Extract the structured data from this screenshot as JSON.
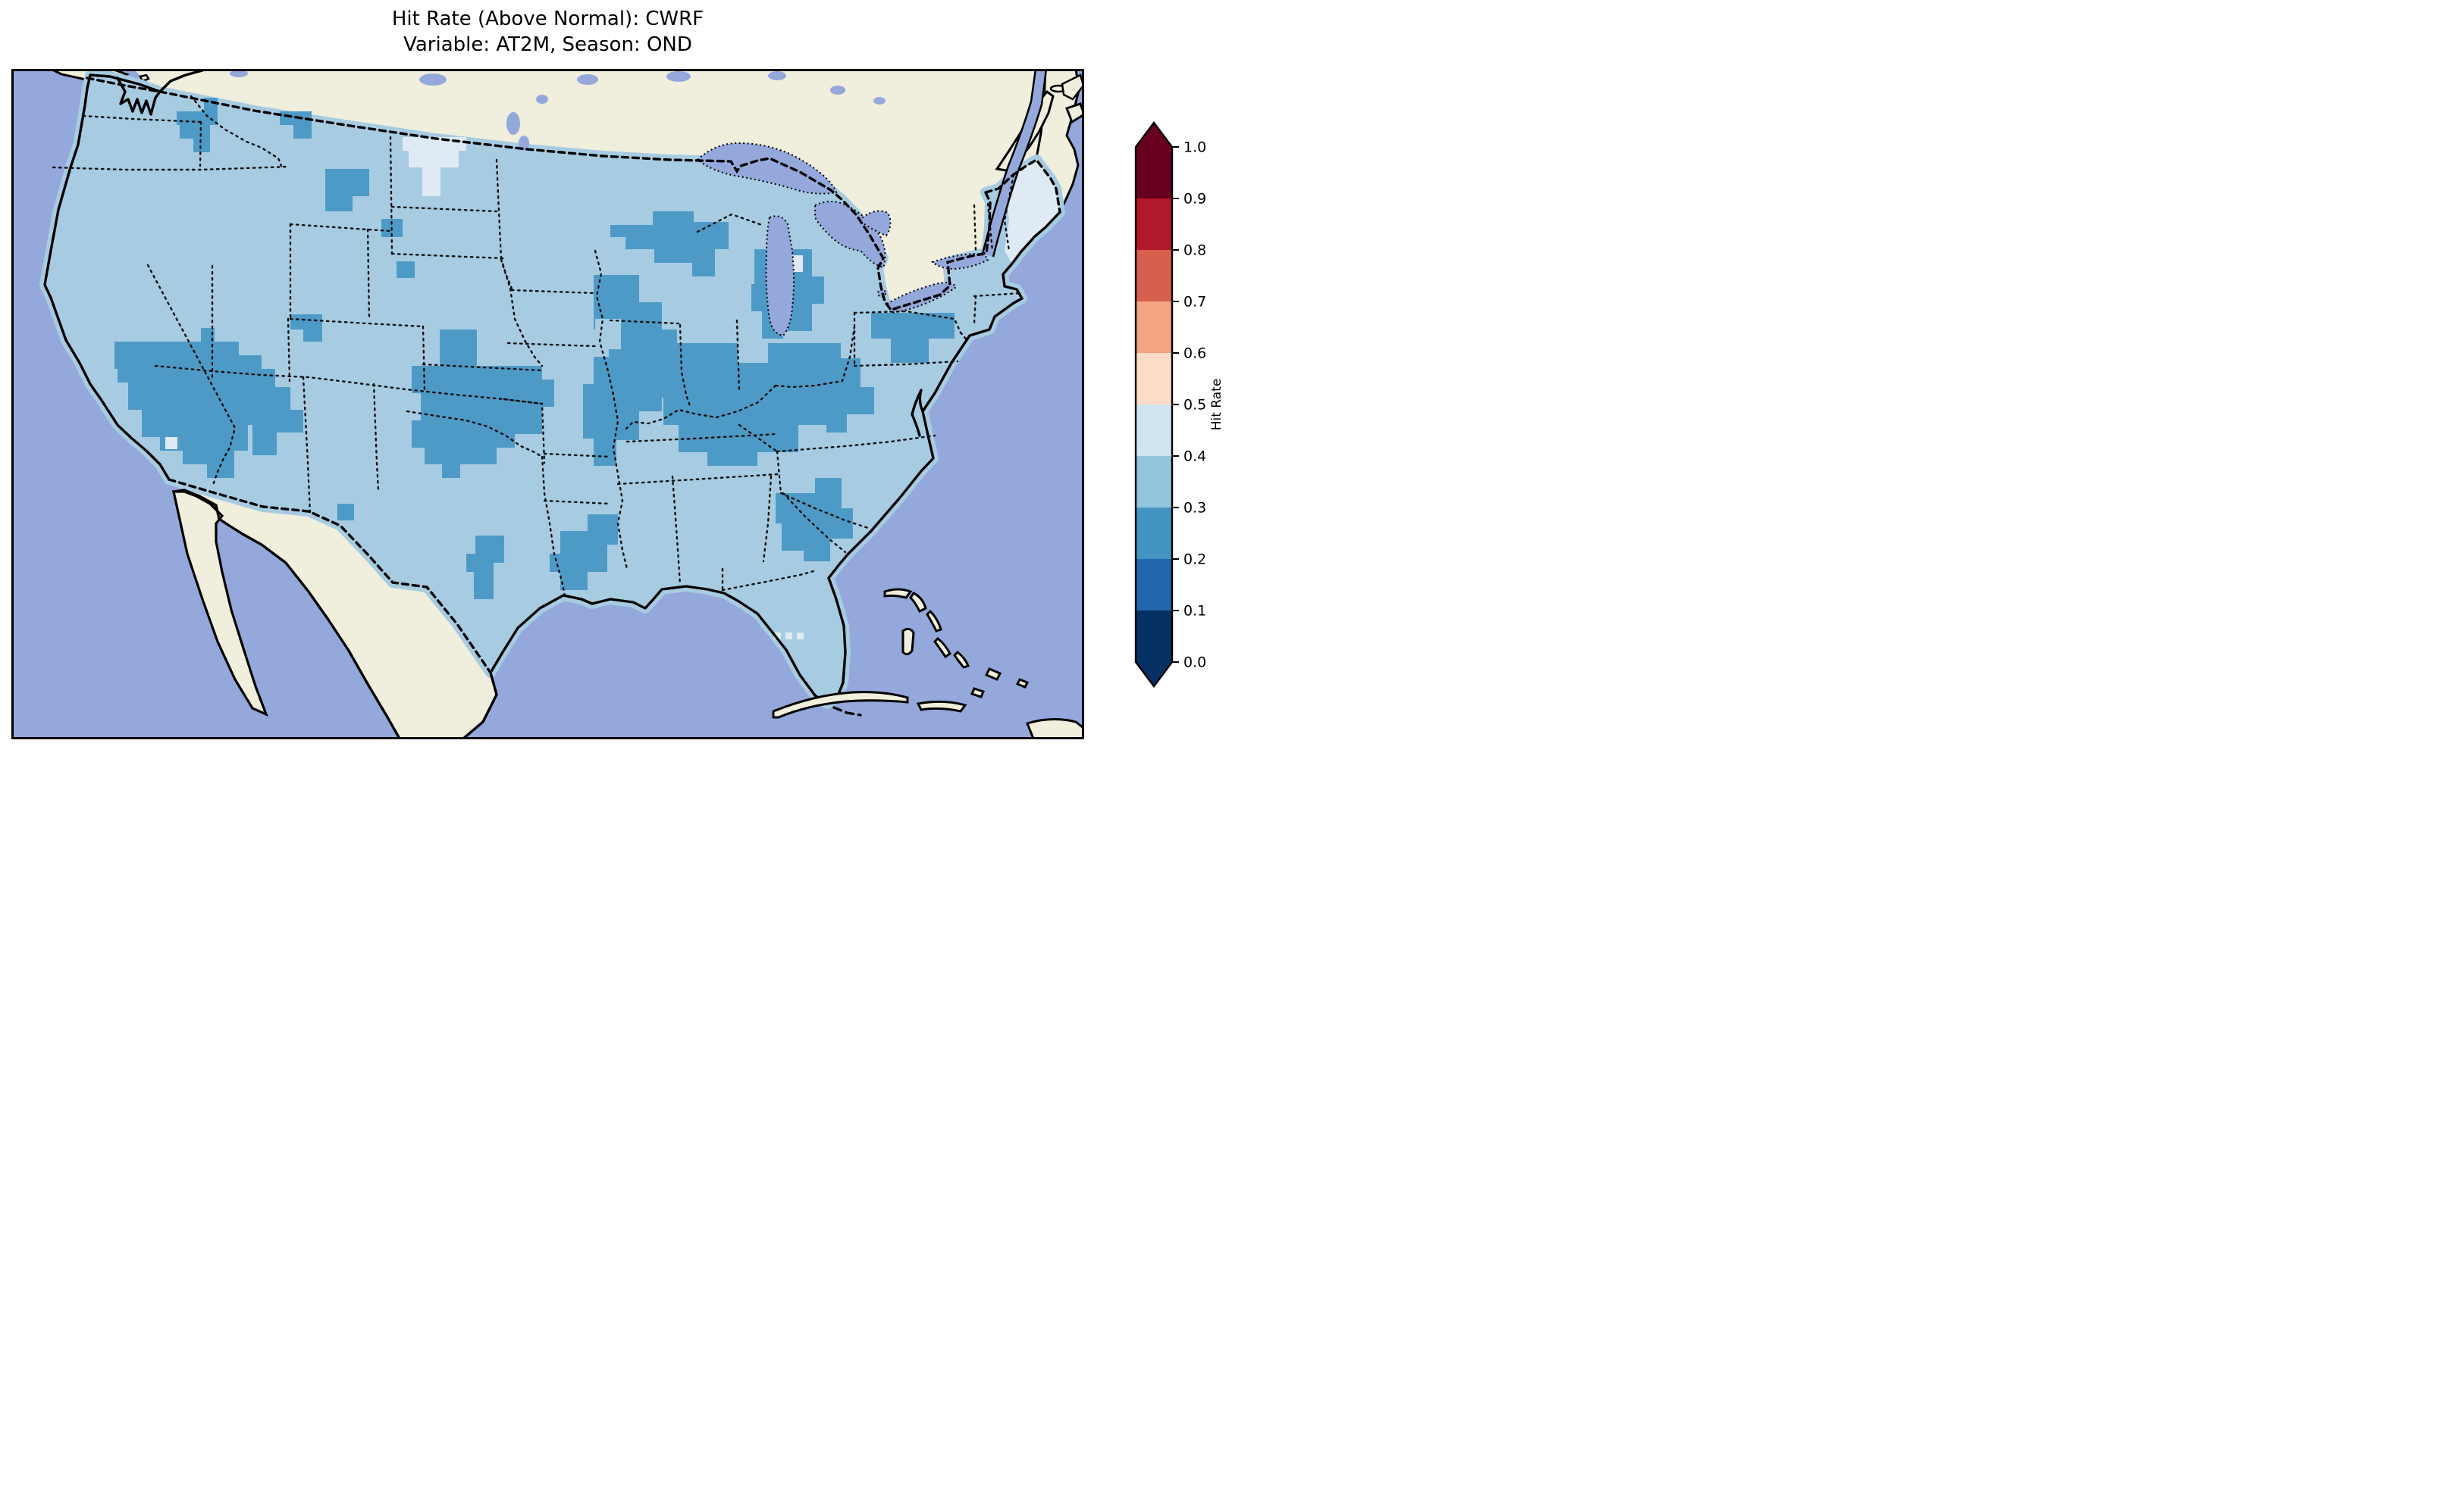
{
  "figure": {
    "title_line1": "Hit Rate (Above Normal): CWRF",
    "title_line2": "Variable: AT2M, Season: OND"
  },
  "colorbar": {
    "label": "Hit Rate",
    "ticks": [
      "1.0",
      "0.9",
      "0.8",
      "0.7",
      "0.6",
      "0.5",
      "0.4",
      "0.3",
      "0.2",
      "0.1",
      "0.0"
    ],
    "segment_colors_top_to_bottom": [
      "#67001f",
      "#b2182b",
      "#d6604d",
      "#f4a582",
      "#fddbc7",
      "#d1e5f0",
      "#92c5de",
      "#4393c3",
      "#2166ac",
      "#053061"
    ],
    "extend_over_color": "#67001f",
    "extend_under_color": "#053061"
  },
  "map": {
    "colors": {
      "ocean": "#94a8db",
      "non_us_land": "#f0eedc",
      "us_bin_03_04": "#a7cce2",
      "us_bin_02_03": "#4e9ac7",
      "us_bin_04_05": "#dfeaf5",
      "coastline": "#000000",
      "border": "#111111"
    }
  },
  "chart_data": {
    "type": "heatmap",
    "title": "Hit Rate (Above Normal): CWRF",
    "subtitle": "Variable: AT2M, Season: OND",
    "metric": "Hit Rate (Above Normal)",
    "model": "CWRF",
    "variable": "AT2M",
    "season": "OND",
    "region": "Contiguous United States (gridded field over CONUS, ocean and Canada/Mexico masked)",
    "colorbar_label": "Hit Rate",
    "colorbar_range": [
      0.0,
      1.0
    ],
    "colorbar_tick_step": 0.1,
    "colormap": "RdBu_r, 10 discrete bins, pointed extension arrows on both ends",
    "bin_colors_low_to_high": [
      "#053061",
      "#2166ac",
      "#4393c3",
      "#92c5de",
      "#d1e5f0",
      "#fddbc7",
      "#f4a582",
      "#d6604d",
      "#b2182b",
      "#67001f"
    ],
    "observed_value_summary": [
      {
        "value_range": "0.3-0.4",
        "coverage": "base value over most of the contiguous United States"
      },
      {
        "value_range": "0.2-0.3",
        "regions": [
          "eastern Washington and Idaho panhandle",
          "northwest and central Montana patches",
          "Nevada and western Utah",
          "Utah-Colorado four-corners tongue",
          "central High Plains: eastern Colorado, Kansas, Nebraska, into South Dakota",
          "upper Midwest: eastern Minnesota, Wisconsin, Upper and Lower Michigan",
          "Ohio Valley: eastern Missouri, Illinois, Indiana, Ohio, Kentucky",
          "western New York and northern Pennsylvania",
          "coastal North Carolina, South Carolina and Georgia",
          "Louisiana and Mississippi Gulf coast",
          "east Texas",
          "far west Texas near El Paso"
        ]
      },
      {
        "value_range": "0.4-0.5",
        "regions": [
          "Maine",
          "western North Dakota / northeastern Montana",
          "one cell in southern Nevada",
          "three cells southwest of the Florida Keys"
        ]
      }
    ],
    "legend_position": "vertical colorbar on right side",
    "grid": false
  }
}
